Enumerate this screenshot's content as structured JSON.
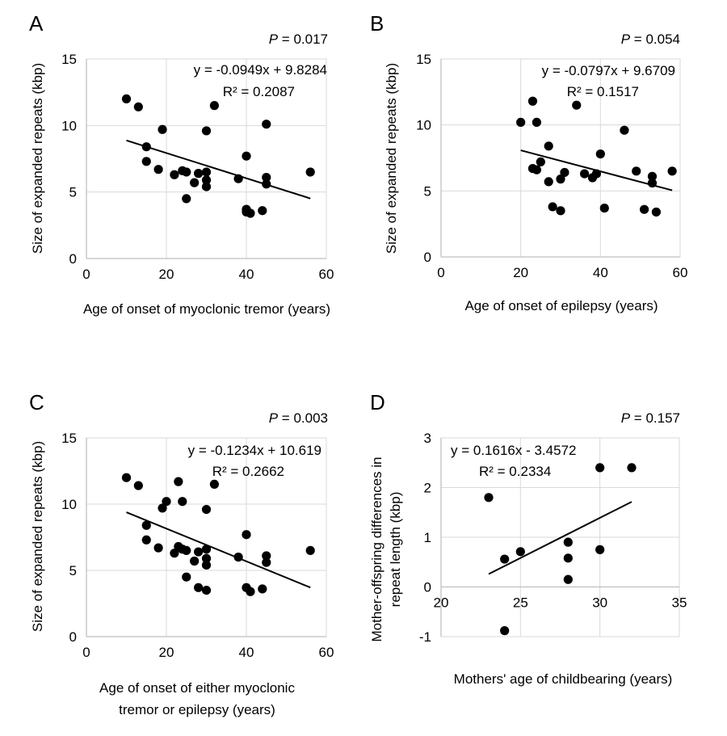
{
  "chart_data": [
    {
      "type": "scatter",
      "panel": "A",
      "p_value_label": "P",
      "p_value_text": " = 0.017",
      "title": "",
      "xlabel": [
        "Age of onset of myoclonic tremor (years)"
      ],
      "ylabel": [
        "Size of expanded repeats (kbp)"
      ],
      "xlim": [
        0,
        60
      ],
      "ylim": [
        0,
        15
      ],
      "xticks": [
        0,
        20,
        40,
        60
      ],
      "yticks": [
        0,
        5,
        10,
        15
      ],
      "xtick_labels": [
        "0",
        "20",
        "40",
        "60"
      ],
      "ytick_labels": [
        "0",
        "5",
        "10",
        "15"
      ],
      "grid": true,
      "equation": "y = -0.0949x + 9.8284",
      "r_squared": "R² = 0.2087",
      "equation_position": "top-right",
      "trendline": {
        "slope": -0.0949,
        "intercept": 9.8284,
        "x_range": [
          10,
          56
        ]
      },
      "points": [
        [
          10,
          12.0
        ],
        [
          13,
          11.4
        ],
        [
          15,
          8.4
        ],
        [
          15,
          7.3
        ],
        [
          18,
          6.7
        ],
        [
          19,
          9.7
        ],
        [
          22,
          6.3
        ],
        [
          24,
          6.6
        ],
        [
          25,
          6.5
        ],
        [
          25,
          4.5
        ],
        [
          27,
          5.7
        ],
        [
          28,
          6.4
        ],
        [
          30,
          6.5
        ],
        [
          30,
          5.9
        ],
        [
          30,
          5.4
        ],
        [
          30,
          9.6
        ],
        [
          32,
          11.5
        ],
        [
          38,
          6.0
        ],
        [
          40,
          7.7
        ],
        [
          40,
          3.7
        ],
        [
          40,
          3.5
        ],
        [
          41,
          3.4
        ],
        [
          44,
          3.6
        ],
        [
          45,
          6.1
        ],
        [
          45,
          5.6
        ],
        [
          45,
          10.1
        ],
        [
          56,
          6.5
        ]
      ]
    },
    {
      "type": "scatter",
      "panel": "B",
      "p_value_label": "P",
      "p_value_text": " = 0.054",
      "title": "",
      "xlabel": [
        "Age of onset of epilepsy (years)"
      ],
      "ylabel": [
        "Size of expanded repeats (kbp)"
      ],
      "xlim": [
        0,
        60
      ],
      "ylim": [
        0,
        15
      ],
      "xticks": [
        0,
        20,
        40,
        60
      ],
      "yticks": [
        0,
        5,
        10,
        15
      ],
      "xtick_labels": [
        "0",
        "20",
        "40",
        "60"
      ],
      "ytick_labels": [
        "0",
        "5",
        "10",
        "15"
      ],
      "grid": true,
      "equation": "y = -0.0797x + 9.6709",
      "r_squared": "R² = 0.1517",
      "equation_position": "top-right",
      "trendline": {
        "slope": -0.0797,
        "intercept": 9.6709,
        "x_range": [
          20,
          58
        ]
      },
      "points": [
        [
          20,
          10.2
        ],
        [
          23,
          11.8
        ],
        [
          24,
          10.2
        ],
        [
          27,
          8.4
        ],
        [
          25,
          7.2
        ],
        [
          23,
          6.7
        ],
        [
          24,
          6.6
        ],
        [
          27,
          5.7
        ],
        [
          28,
          3.8
        ],
        [
          30,
          3.5
        ],
        [
          30,
          5.9
        ],
        [
          31,
          6.4
        ],
        [
          34,
          11.5
        ],
        [
          36,
          6.3
        ],
        [
          38,
          6.0
        ],
        [
          39,
          6.3
        ],
        [
          40,
          7.8
        ],
        [
          41,
          3.7
        ],
        [
          46,
          9.6
        ],
        [
          49,
          6.5
        ],
        [
          51,
          3.6
        ],
        [
          53,
          6.1
        ],
        [
          53,
          5.6
        ],
        [
          54,
          3.4
        ],
        [
          58,
          6.5
        ]
      ]
    },
    {
      "type": "scatter",
      "panel": "C",
      "p_value_label": "P",
      "p_value_text": " = 0.003",
      "title": "",
      "xlabel": [
        "Age of onset of either myoclonic",
        "tremor or epilepsy (years)"
      ],
      "ylabel": [
        "Size of expanded repeats (kbp)"
      ],
      "xlim": [
        0,
        60
      ],
      "ylim": [
        0,
        15
      ],
      "xticks": [
        0,
        20,
        40,
        60
      ],
      "yticks": [
        0,
        5,
        10,
        15
      ],
      "xtick_labels": [
        "0",
        "20",
        "40",
        "60"
      ],
      "ytick_labels": [
        "0",
        "5",
        "10",
        "15"
      ],
      "grid": true,
      "equation": "y = -0.1234x + 10.619",
      "r_squared": "R² = 0.2662",
      "equation_position": "top-right",
      "trendline": {
        "slope": -0.1234,
        "intercept": 10.619,
        "x_range": [
          10,
          56
        ]
      },
      "points": [
        [
          10,
          12.0
        ],
        [
          13,
          11.4
        ],
        [
          23,
          11.7
        ],
        [
          20,
          10.2
        ],
        [
          19,
          9.7
        ],
        [
          24,
          10.2
        ],
        [
          30,
          9.6
        ],
        [
          32,
          11.5
        ],
        [
          15,
          8.4
        ],
        [
          15,
          7.3
        ],
        [
          18,
          6.7
        ],
        [
          22,
          6.3
        ],
        [
          23,
          6.8
        ],
        [
          24,
          6.6
        ],
        [
          25,
          6.5
        ],
        [
          27,
          5.7
        ],
        [
          28,
          6.4
        ],
        [
          30,
          6.6
        ],
        [
          30,
          5.9
        ],
        [
          30,
          5.4
        ],
        [
          25,
          4.5
        ],
        [
          28,
          3.7
        ],
        [
          30,
          3.5
        ],
        [
          38,
          6.0
        ],
        [
          40,
          7.7
        ],
        [
          40,
          3.7
        ],
        [
          41,
          3.4
        ],
        [
          44,
          3.6
        ],
        [
          45,
          6.1
        ],
        [
          45,
          5.6
        ],
        [
          56,
          6.5
        ]
      ]
    },
    {
      "type": "scatter",
      "panel": "D",
      "p_value_label": "P",
      "p_value_text": " = 0.157",
      "title": "",
      "xlabel": [
        "Mothers' age of childbearing (years)"
      ],
      "ylabel": [
        "Mother-offspring differences in",
        "repeat length (kbp)"
      ],
      "xlim": [
        20,
        35
      ],
      "ylim": [
        -1,
        3
      ],
      "xticks": [
        20,
        25,
        30,
        35
      ],
      "yticks": [
        -1,
        0,
        1,
        2,
        3
      ],
      "xtick_labels": [
        "20",
        "25",
        "30",
        "35"
      ],
      "ytick_labels": [
        "-1",
        "0",
        "1",
        "2",
        "3"
      ],
      "grid": true,
      "equation": "y = 0.1616x - 3.4572",
      "r_squared": "R² = 0.2334",
      "equation_position": "top-left",
      "trendline": {
        "slope": 0.1616,
        "intercept": -3.4572,
        "x_range": [
          23,
          32
        ]
      },
      "points": [
        [
          23,
          1.8
        ],
        [
          24,
          0.56
        ],
        [
          25,
          0.71
        ],
        [
          28,
          0.9
        ],
        [
          28,
          0.58
        ],
        [
          28,
          0.15
        ],
        [
          30,
          0.75
        ],
        [
          30,
          2.4
        ],
        [
          32,
          2.4
        ],
        [
          24,
          -0.88
        ]
      ]
    }
  ]
}
